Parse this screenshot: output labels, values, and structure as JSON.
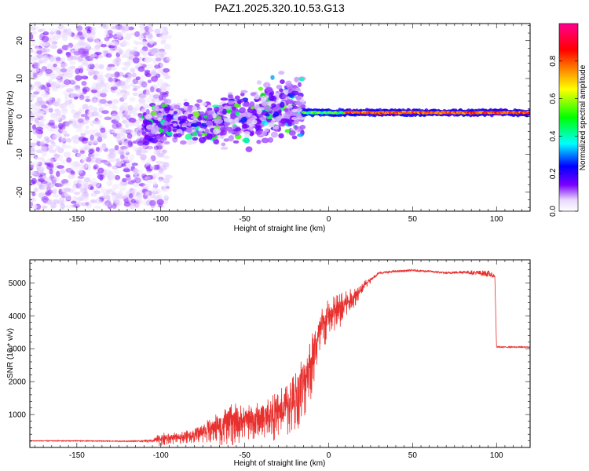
{
  "title": "PAZ1.2025.320.10.53.G13",
  "colors": {
    "snr_line": "#e8302e",
    "axis": "#000000",
    "colorbar": [
      "#ffffff",
      "#7a00ff",
      "#0000ff",
      "#00ffff",
      "#00ff00",
      "#ffff00",
      "#ff7f00",
      "#ff0000",
      "#ff0080"
    ]
  },
  "chart_data": [
    {
      "type": "heatmap",
      "xlabel": "Height of straight line (km)",
      "ylabel": "Frequency (Hz)",
      "xlim": [
        -178,
        120
      ],
      "ylim": [
        -25,
        24.5
      ],
      "xticks": [
        -150,
        -100,
        -50,
        0,
        50,
        100
      ],
      "yticks": [
        -20,
        -10,
        0,
        10,
        20
      ],
      "colorbar": {
        "label": "Normalized spectral amplitude",
        "range": [
          0,
          1
        ],
        "ticks": [
          0.0,
          0.2,
          0.4,
          0.6,
          0.8
        ]
      },
      "features": [
        {
          "name": "noise",
          "x_range": [
            -178,
            -95
          ],
          "freq_range": [
            -24,
            24
          ],
          "amplitude": 0.15
        },
        {
          "name": "scatter",
          "x_range": [
            -110,
            -15
          ],
          "freq_range": [
            -8,
            10
          ],
          "amplitude": 0.4
        },
        {
          "name": "carrier",
          "x_range": [
            -15,
            120
          ],
          "freq_center": 1,
          "amplitude": 0.85
        }
      ]
    },
    {
      "type": "line",
      "xlabel": "Height of straight line (km)",
      "ylabel": "SNR (10 * v/v)",
      "xlim": [
        -178,
        120
      ],
      "ylim": [
        0,
        5700
      ],
      "xticks": [
        -150,
        -100,
        -50,
        0,
        50,
        100
      ],
      "yticks": [
        1000,
        2000,
        3000,
        4000,
        5000
      ],
      "series": [
        {
          "name": "SNR",
          "x": [
            -178,
            -150,
            -120,
            -105,
            -100,
            -90,
            -80,
            -70,
            -60,
            -50,
            -40,
            -30,
            -25,
            -20,
            -15,
            -10,
            -5,
            0,
            5,
            10,
            15,
            20,
            25,
            30,
            40,
            50,
            60,
            70,
            80,
            90,
            95,
            99,
            100,
            105,
            110,
            120
          ],
          "y": [
            200,
            200,
            190,
            200,
            280,
            320,
            400,
            600,
            800,
            850,
            950,
            1100,
            1300,
            1600,
            2100,
            2700,
            3600,
            4000,
            4200,
            4400,
            4600,
            4900,
            5100,
            5300,
            5350,
            5380,
            5350,
            5300,
            5330,
            5300,
            5280,
            5200,
            3050,
            3050,
            3050,
            3050
          ],
          "noise": [
            25,
            25,
            25,
            40,
            200,
            150,
            200,
            350,
            600,
            550,
            500,
            700,
            800,
            900,
            1000,
            900,
            700,
            600,
            550,
            400,
            300,
            150,
            80,
            60,
            60,
            60,
            60,
            60,
            80,
            150,
            200,
            80,
            30,
            30,
            30,
            30
          ]
        }
      ]
    }
  ]
}
